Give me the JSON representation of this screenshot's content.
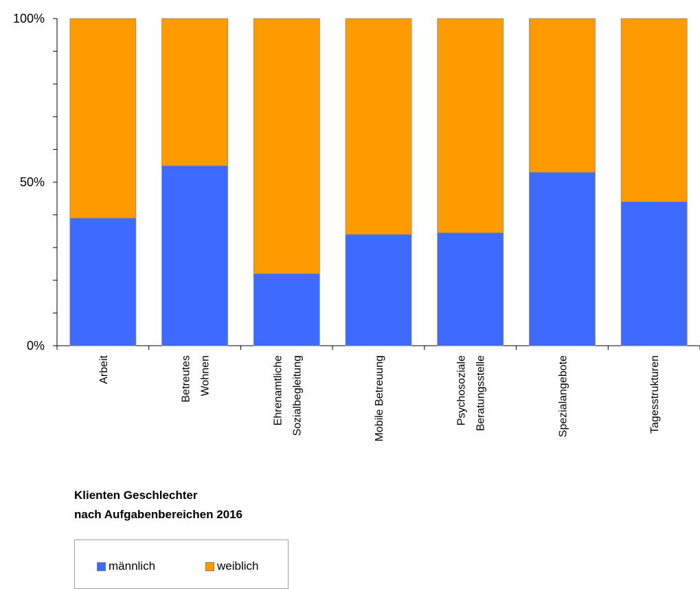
{
  "chart_data": {
    "type": "bar",
    "stacked": true,
    "normalized_percent": true,
    "categories": [
      [
        "Arbeit"
      ],
      [
        "Betreutes",
        "Wohnen"
      ],
      [
        "Ehrenamtliche",
        "Sozialbegleitung"
      ],
      [
        "Mobile Betreuung"
      ],
      [
        "Psychosoziale",
        "Beratungsstelle"
      ],
      [
        "Spezialangebote"
      ],
      [
        "Tagesstrukturen"
      ]
    ],
    "series": [
      {
        "name": "männlich",
        "color": "#3d6bff",
        "values": [
          39,
          55,
          22,
          34,
          34.5,
          53,
          44
        ]
      },
      {
        "name": "weiblich",
        "color": "#ff9a00",
        "values": [
          61,
          45,
          78,
          66,
          65.5,
          47,
          56
        ]
      }
    ],
    "yticks": [
      "0%",
      "50%",
      "100%"
    ],
    "ylim": [
      0,
      100
    ],
    "title_lines": [
      "Klienten Geschlechter",
      "nach Aufgabenbereichen 2016"
    ],
    "legend_placement": "bottom-left"
  }
}
